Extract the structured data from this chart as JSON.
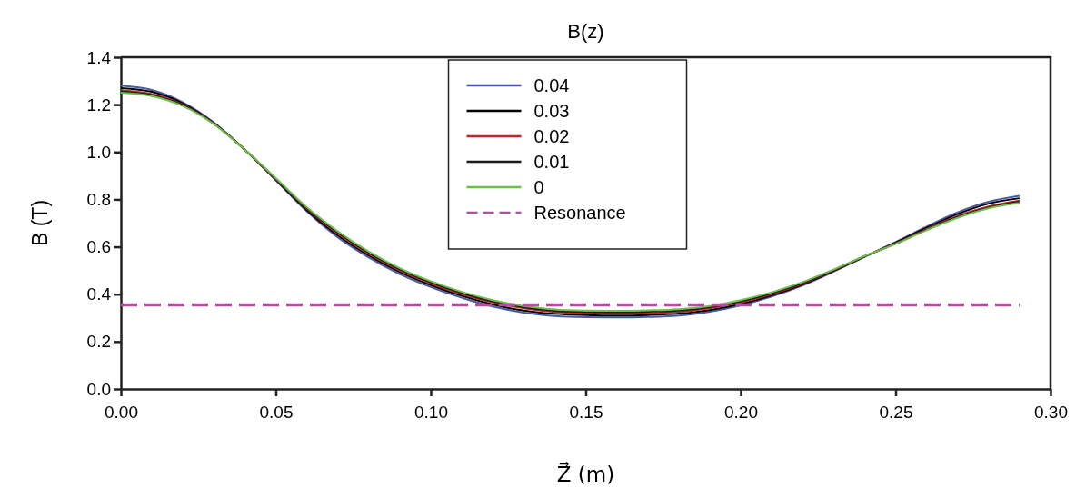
{
  "chart_data": {
    "type": "line",
    "title": "B(z)",
    "xlabel": "Z⃗ (m)",
    "ylabel": "B (T)",
    "x": [
      0,
      0.01,
      0.02,
      0.03,
      0.04,
      0.05,
      0.06,
      0.07,
      0.08,
      0.09,
      0.1,
      0.11,
      0.12,
      0.13,
      0.14,
      0.15,
      0.16,
      0.17,
      0.18,
      0.19,
      0.2,
      0.21,
      0.22,
      0.23,
      0.24,
      0.25,
      0.26,
      0.27,
      0.28,
      0.29
    ],
    "series": [
      {
        "name": "0.04",
        "color": "#4a5aa8",
        "values": [
          1.28,
          1.262,
          1.21,
          1.125,
          1.01,
          0.88,
          0.75,
          0.64,
          0.555,
          0.485,
          0.43,
          0.385,
          0.348,
          0.322,
          0.308,
          0.303,
          0.302,
          0.304,
          0.31,
          0.326,
          0.353,
          0.39,
          0.437,
          0.495,
          0.558,
          0.62,
          0.685,
          0.745,
          0.79,
          0.815
        ]
      },
      {
        "name": "0.03",
        "color": "#000000",
        "values": [
          1.27,
          1.254,
          1.205,
          1.122,
          1.01,
          0.883,
          0.755,
          0.648,
          0.563,
          0.493,
          0.438,
          0.393,
          0.357,
          0.331,
          0.317,
          0.312,
          0.31,
          0.312,
          0.318,
          0.333,
          0.359,
          0.395,
          0.441,
          0.498,
          0.559,
          0.618,
          0.68,
          0.738,
          0.782,
          0.805
        ]
      },
      {
        "name": "0.02",
        "color": "#c0272d",
        "values": [
          1.26,
          1.245,
          1.2,
          1.12,
          1.01,
          0.885,
          0.76,
          0.655,
          0.57,
          0.5,
          0.445,
          0.4,
          0.365,
          0.34,
          0.325,
          0.32,
          0.318,
          0.32,
          0.325,
          0.34,
          0.365,
          0.4,
          0.445,
          0.5,
          0.56,
          0.615,
          0.675,
          0.73,
          0.77,
          0.795
        ]
      },
      {
        "name": "0.01",
        "color": "#1a1a1a",
        "values": [
          1.255,
          1.24,
          1.197,
          1.119,
          1.01,
          0.887,
          0.763,
          0.66,
          0.575,
          0.505,
          0.45,
          0.405,
          0.37,
          0.345,
          0.33,
          0.325,
          0.324,
          0.326,
          0.331,
          0.345,
          0.37,
          0.404,
          0.448,
          0.502,
          0.56,
          0.613,
          0.672,
          0.726,
          0.765,
          0.79
        ]
      },
      {
        "name": "0",
        "color": "#6cbf4a",
        "values": [
          1.25,
          1.236,
          1.194,
          1.118,
          1.01,
          0.89,
          0.767,
          0.665,
          0.58,
          0.51,
          0.455,
          0.41,
          0.375,
          0.35,
          0.336,
          0.331,
          0.33,
          0.332,
          0.337,
          0.35,
          0.375,
          0.408,
          0.451,
          0.504,
          0.561,
          0.612,
          0.67,
          0.722,
          0.762,
          0.785
        ]
      },
      {
        "name": "Resonance",
        "color": "#b0509c",
        "line_style": "dashed",
        "x": [
          0,
          0.29
        ],
        "values": [
          0.355,
          0.355
        ]
      }
    ],
    "xlim": [
      0,
      0.3
    ],
    "ylim": [
      0,
      1.4
    ],
    "xticks": [
      {
        "value": 0,
        "label": "0.00"
      },
      {
        "value": 0.05,
        "label": "0.05"
      },
      {
        "value": 0.1,
        "label": "0.10"
      },
      {
        "value": 0.15,
        "label": "0.15"
      },
      {
        "value": 0.2,
        "label": "0.20"
      },
      {
        "value": 0.25,
        "label": "0.25"
      },
      {
        "value": 0.3,
        "label": "0.30"
      }
    ],
    "yticks": [
      {
        "value": 0,
        "label": "0.0"
      },
      {
        "value": 0.2,
        "label": "0.2"
      },
      {
        "value": 0.4,
        "label": "0.4"
      },
      {
        "value": 0.6,
        "label": "0.6"
      },
      {
        "value": 0.8,
        "label": "0.8"
      },
      {
        "value": 1,
        "label": "1.0"
      },
      {
        "value": 1.2,
        "label": "1.2"
      },
      {
        "value": 1.4,
        "label": "1.4"
      }
    ],
    "legend": "top"
  }
}
